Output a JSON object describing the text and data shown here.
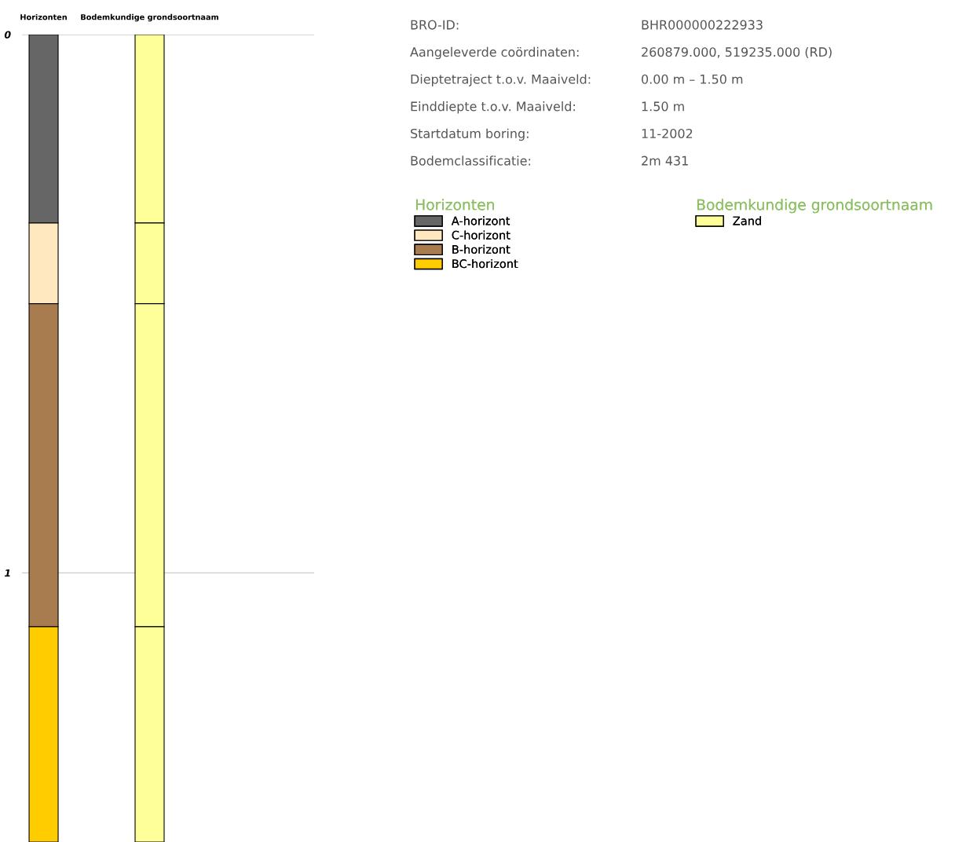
{
  "chart_data": {
    "type": "bar",
    "stacked": true,
    "categories": [
      "Horizonten",
      "Bodemkundige grondsoortnaam"
    ],
    "series": [
      {
        "name": "A-horizont",
        "color": "#666666",
        "values": [
          0.35,
          null
        ]
      },
      {
        "name": "Zand",
        "color": "#ffff99",
        "values": [
          null,
          0.35
        ]
      },
      {
        "name": "C-horizont",
        "color": "#ffe8bf",
        "values": [
          0.15,
          null
        ]
      },
      {
        "color": "#ffff99",
        "values": [
          null,
          0.15
        ]
      },
      {
        "name": "B-horizont",
        "color": "#a97c50",
        "values": [
          0.6,
          null
        ]
      },
      {
        "color": "#ffff99",
        "values": [
          null,
          0.6
        ]
      },
      {
        "name": "BC-horizont",
        "color": "#ffcc00",
        "values": [
          0.4,
          null
        ]
      },
      {
        "color": "#ffff99",
        "values": [
          null,
          0.4
        ]
      }
    ],
    "ylim": [
      1.5,
      0
    ],
    "yticks": [
      0,
      1
    ],
    "grid": "y",
    "legend": "top right",
    "annotations": [
      "BRO-ID:",
      "BHR000000222933",
      "Aangeleverde coördinaten:",
      "260879.000, 519235.000 (RD)",
      "Dieptetraject t.o.v. Maaiveld:",
      "0.00 m – 1.50 m",
      "Einddiepte t.o.v. Maaiveld:",
      "1.50 m",
      "Startdatum boring:",
      "11-2002",
      "Bodemclassificatie:",
      "2m 431"
    ]
  }
}
